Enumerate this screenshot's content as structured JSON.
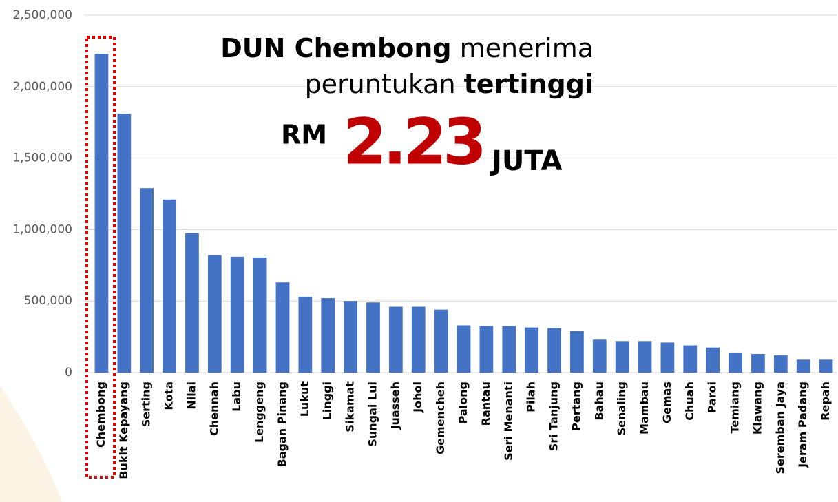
{
  "chart_data": {
    "type": "bar",
    "categories": [
      "Chembong",
      "Bukit Kepayang",
      "Serting",
      "Kota",
      "Nilai",
      "Chennah",
      "Labu",
      "Lenggeng",
      "Bagan Pinang",
      "Lukut",
      "Linggi",
      "Sikamat",
      "Sungai Lui",
      "Juasseh",
      "Johol",
      "Gemencheh",
      "Palong",
      "Rantau",
      "Seri Menanti",
      "Pilah",
      "Sri Tanjung",
      "Pertang",
      "Bahau",
      "Senaling",
      "Mambau",
      "Gemas",
      "Chuah",
      "Paroi",
      "Temiang",
      "Klawang",
      "Seremban Jaya",
      "Jeram Padang",
      "Repah"
    ],
    "values": [
      2230000,
      1810000,
      1290000,
      1210000,
      975000,
      820000,
      810000,
      805000,
      630000,
      530000,
      520000,
      500000,
      490000,
      460000,
      460000,
      440000,
      330000,
      325000,
      325000,
      315000,
      310000,
      290000,
      230000,
      220000,
      220000,
      210000,
      190000,
      175000,
      140000,
      130000,
      120000,
      90000,
      90000
    ],
    "color": "#4472c4",
    "ylim": [
      0,
      2500000
    ],
    "yticks": [
      0,
      {
        "value": 500000,
        "label": "500,000"
      },
      {
        "value": 1000000,
        "label": "1,000,000"
      },
      {
        "value": 1500000,
        "label": "1,500,000"
      },
      {
        "value": 2000000,
        "label": "2,000,000"
      },
      {
        "value": 2500000,
        "label": "2,500,000"
      }
    ],
    "grid": true,
    "annotation": {
      "line1_bold": "DUN Chembong",
      "line1_rest": "menerima",
      "line2_rest": "peruntukan",
      "line2_bold": "tertinggi",
      "currency": "RM",
      "amount": "2.23",
      "unit": "JUTA"
    }
  }
}
